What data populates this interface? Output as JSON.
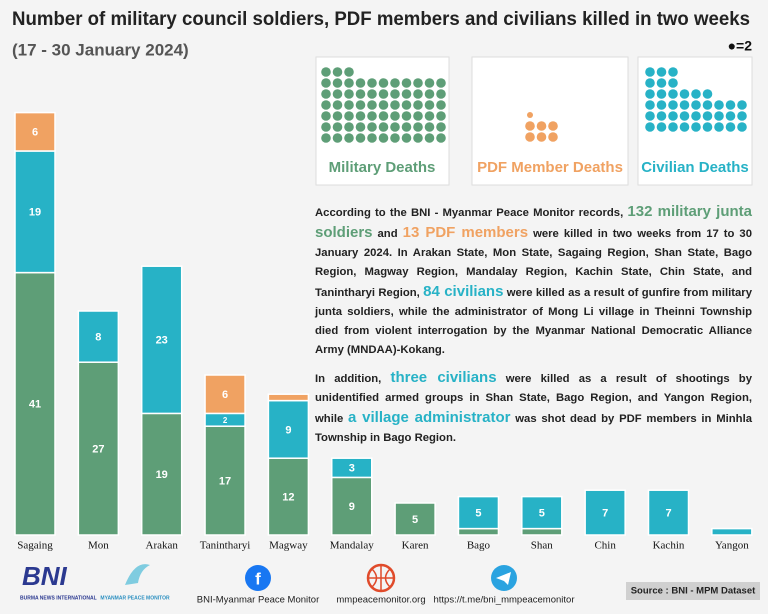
{
  "chart_data": {
    "type": "stacked-bar",
    "title": "Number of military council soldiers, PDF members and civilians killed in two weeks",
    "subtitle": "(17 - 30 January 2024)",
    "pictogram_legend": "●=2",
    "box_labels": [
      "Military Deaths",
      "PDF Member Deaths",
      "Civilian Deaths"
    ],
    "categories": [
      "Sagaing",
      "Mon",
      "Arakan",
      "Tanintharyi",
      "Magway",
      "Mandalay",
      "Karen",
      "Bago",
      "Shan",
      "Chin",
      "Kachin",
      "Yangon"
    ],
    "series": [
      {
        "name": "Military Deaths",
        "color": "#5e9e77",
        "values": [
          41,
          27,
          19,
          17,
          12,
          9,
          5,
          1,
          1,
          null,
          null,
          null
        ]
      },
      {
        "name": "Civilian Deaths",
        "color": "#27b2c6",
        "values": [
          19,
          8,
          23,
          2,
          9,
          3,
          null,
          5,
          5,
          7,
          7,
          1
        ]
      },
      {
        "name": "PDF Member Deaths",
        "color": "#f0a262",
        "values": [
          6,
          null,
          null,
          6,
          1,
          null,
          null,
          null,
          null,
          null,
          null,
          null
        ]
      }
    ]
  },
  "body": [
    [
      "According to the BNI - Myanmar Peace Monitor records, ",
      "132 military junta soldiers",
      " and ",
      "13 PDF members",
      " were killed in two weeks from 17 to 30 January 2024. In Arakan State, Mon State, Sagaing Region, Shan State, Bago Region, Magway Region, Mandalay Region, Kachin State, Chin State, and Tanintharyi Region, ",
      "84 civilians",
      " were killed as a result of gunfire from military junta soldiers, while the administrator of Mong Li village in Theinni Township died from violent interrogation by the Myanmar National Democratic Alliance Army (MNDAA)-Kokang."
    ],
    [
      "In addition, ",
      "three civilians",
      " were killed as a result of shootings by unidentified armed groups in Shan State, Bago Region, and Yangon Region, while ",
      "a village administrator",
      " was shot dead by PDF members in Minhla Township in Bago Region."
    ]
  ],
  "footer": {
    "logo_bni": "BNI",
    "logo_bni_sub": "BURMA NEWS INTERNATIONAL",
    "logo_mpm": "MYANMAR PEACE MONITOR",
    "facebook": "BNI-Myanmar Peace Monitor",
    "website": "mmpeacemonitor.org",
    "telegram": "https://t.me/bni_mmpeacemonitor",
    "source": "Source : BNI - MPM Dataset"
  }
}
